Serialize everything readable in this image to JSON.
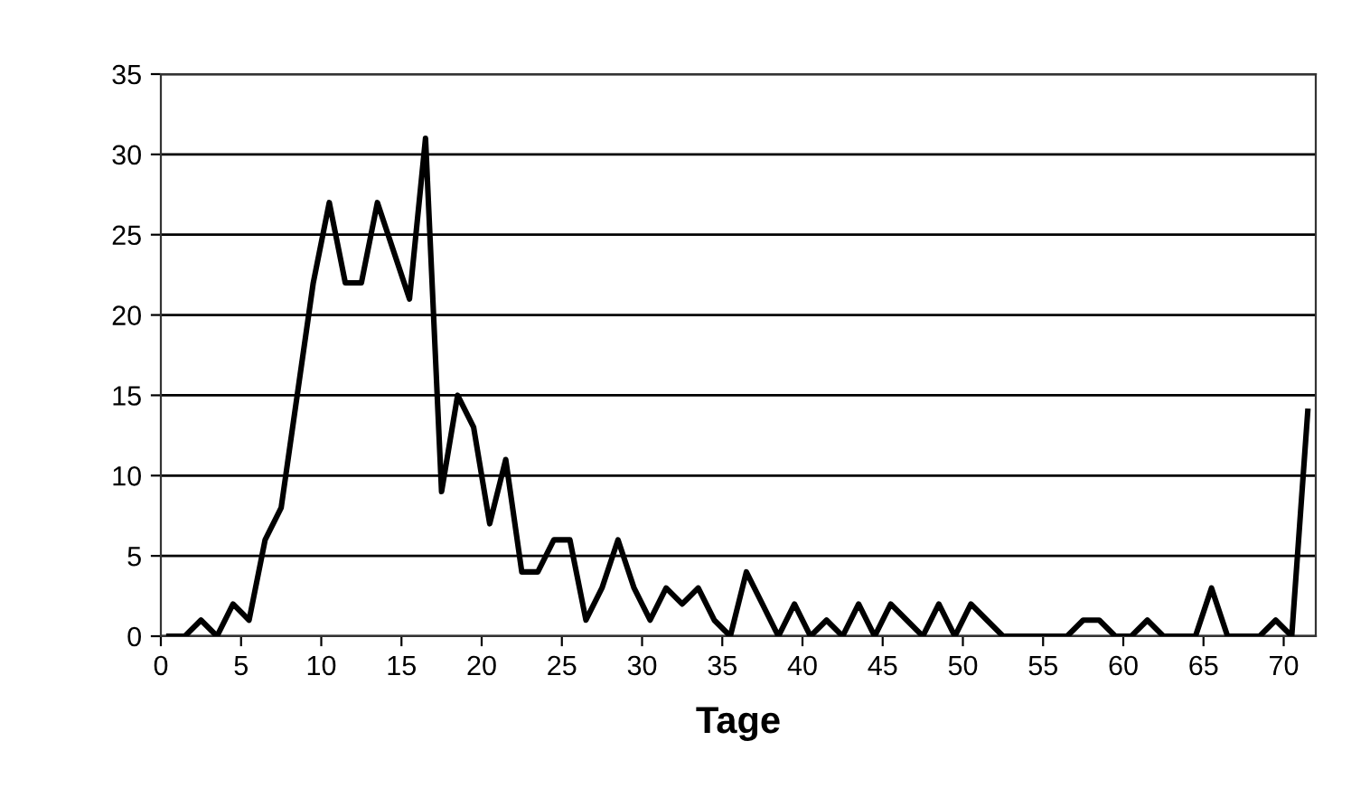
{
  "chart_data": {
    "type": "line",
    "xlabel": "Tage",
    "x": [
      0.5,
      1.5,
      2.5,
      3.5,
      4.5,
      5.5,
      6.5,
      7.5,
      8.5,
      9.5,
      10.5,
      11.5,
      12.5,
      13.5,
      14.5,
      15.5,
      16.5,
      17.5,
      18.5,
      19.5,
      20.5,
      21.5,
      22.5,
      23.5,
      24.5,
      25.5,
      26.5,
      27.5,
      28.5,
      29.5,
      30.5,
      31.5,
      32.5,
      33.5,
      34.5,
      35.5,
      36.5,
      37.5,
      38.5,
      39.5,
      40.5,
      41.5,
      42.5,
      43.5,
      44.5,
      45.5,
      46.5,
      47.5,
      48.5,
      49.5,
      50.5,
      51.5,
      52.5,
      53.5,
      54.5,
      55.5,
      56.5,
      57.5,
      58.5,
      59.5,
      60.5,
      61.5,
      62.5,
      63.5,
      64.5,
      65.5,
      66.5,
      67.5,
      68.5,
      69.5,
      70.5,
      71.5
    ],
    "series": [
      {
        "color": "#000000",
        "values": [
          0,
          0,
          1,
          0,
          2,
          1,
          6,
          8,
          15,
          22,
          27,
          22,
          22,
          27,
          24,
          21,
          31,
          9,
          15,
          13,
          7,
          11,
          4,
          4,
          6,
          6,
          1,
          3,
          6,
          3,
          1,
          3,
          2,
          3,
          1,
          0,
          4,
          2,
          0,
          2,
          0,
          1,
          0,
          2,
          0,
          2,
          1,
          0,
          2,
          0,
          2,
          1,
          0,
          0,
          0,
          0,
          0,
          1,
          1,
          0,
          0,
          1,
          0,
          0,
          0,
          3,
          0,
          0,
          0,
          1,
          0,
          14
        ]
      }
    ],
    "xlim": [
      0,
      72
    ],
    "xticks": [
      0,
      5,
      10,
      15,
      20,
      25,
      30,
      35,
      40,
      45,
      50,
      55,
      60,
      65,
      70
    ],
    "ylim": [
      0,
      35
    ],
    "yticks": [
      0,
      5,
      10,
      15,
      20,
      25,
      30,
      35
    ],
    "grid": "y",
    "marker": "none",
    "line_style": "solid"
  }
}
